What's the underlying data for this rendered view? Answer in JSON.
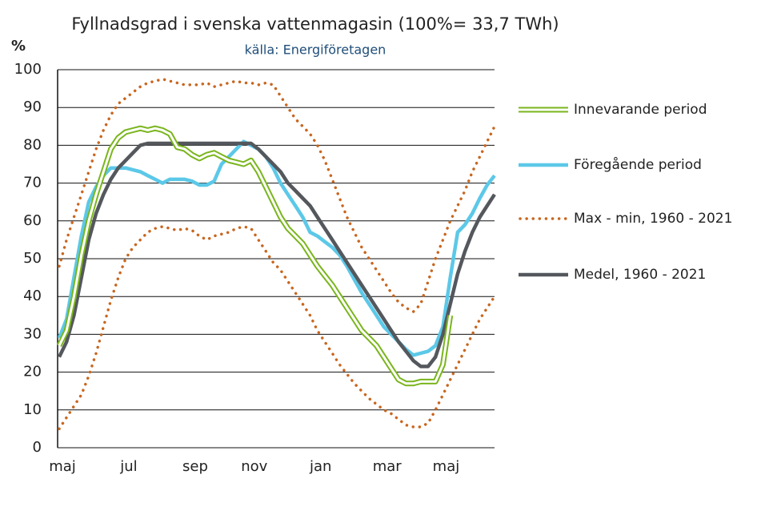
{
  "chart_data": {
    "type": "line",
    "title": "Fyllnadsgrad i svenska vattenmagasin (100%= 33,7 TWh)",
    "subtitle": "källa: Energiföretagen",
    "y_label": "%",
    "ylim": [
      0,
      100
    ],
    "yticks": [
      0,
      10,
      20,
      30,
      40,
      50,
      60,
      70,
      80,
      90,
      100
    ],
    "grid": true,
    "categories": [
      "maj",
      null,
      null,
      null,
      null,
      null,
      null,
      null,
      null,
      "jul",
      null,
      null,
      null,
      null,
      null,
      null,
      null,
      null,
      "sep",
      null,
      null,
      null,
      null,
      null,
      null,
      null,
      "nov",
      null,
      null,
      null,
      null,
      null,
      null,
      null,
      null,
      "jan",
      null,
      null,
      null,
      null,
      null,
      null,
      null,
      null,
      "mar",
      null,
      null,
      null,
      null,
      null,
      null,
      null,
      "maj",
      null,
      null,
      null,
      null,
      null,
      null,
      null
    ],
    "series": [
      {
        "name": "Innevarande period",
        "color": "#7ab51d",
        "style": "double",
        "values": [
          27,
          31,
          40,
          51,
          60,
          67,
          73,
          79,
          82,
          83.5,
          84,
          84.5,
          84,
          84.5,
          84,
          83,
          79.5,
          79,
          77.5,
          76.5,
          77.5,
          78,
          77,
          76,
          75.5,
          75,
          76,
          73,
          69,
          65,
          61,
          58,
          56,
          54,
          51,
          48,
          45.5,
          43,
          40,
          37,
          34,
          31,
          29,
          27,
          24,
          21,
          18,
          17,
          17,
          17.5,
          17.5,
          17.5,
          22,
          35,
          null,
          null,
          null,
          null,
          null,
          null
        ]
      },
      {
        "name": "Föregående period",
        "color": "#5cc8e8",
        "style": "solid",
        "values": [
          29,
          34,
          45,
          56,
          65,
          69,
          72,
          74,
          74,
          74,
          73.5,
          73,
          72,
          71,
          70,
          71,
          71,
          71,
          70.5,
          69.5,
          69.5,
          70.5,
          75,
          77,
          79,
          81,
          80,
          79,
          77,
          74,
          70,
          67,
          64,
          61,
          57,
          56,
          54.5,
          53,
          51,
          48,
          44.5,
          41,
          38,
          35,
          32,
          30,
          28,
          26,
          24.5,
          25,
          25.5,
          27,
          32,
          45,
          57,
          59,
          62,
          66,
          69.5,
          72
        ]
      },
      {
        "name": "Max - min, 1960 - 2021",
        "color": "#c8661f",
        "style": "dotted",
        "values": [
          48,
          55,
          61,
          67,
          73,
          79,
          84,
          88,
          91,
          92.5,
          94,
          95.5,
          96.5,
          97,
          97.5,
          97,
          96.5,
          96,
          96,
          96,
          96.5,
          95.5,
          96,
          96.5,
          97,
          96.5,
          96.5,
          96,
          96.5,
          96,
          93,
          90,
          87,
          85,
          83,
          80,
          76,
          71,
          66,
          61,
          57,
          53,
          50,
          47,
          44,
          41,
          38.5,
          37,
          36,
          38,
          44,
          50,
          55,
          60,
          64,
          68,
          73,
          77,
          81,
          85
        ],
        "low": [
          5,
          8,
          11,
          14,
          19,
          25,
          32,
          39,
          45,
          50,
          53,
          55,
          57,
          58,
          58.5,
          58,
          57.5,
          58,
          57.5,
          56,
          55,
          56,
          56.5,
          57,
          58,
          58.5,
          58,
          55,
          52,
          49,
          47,
          44,
          41,
          38,
          35,
          31,
          28,
          25,
          22,
          19.5,
          17,
          15,
          13,
          11.5,
          10,
          9,
          7.5,
          6,
          5.5,
          5.5,
          6.5,
          10,
          14,
          18,
          22,
          26,
          30,
          34,
          37,
          40
        ]
      },
      {
        "name": "Medel, 1960 - 2021",
        "color": "#54585d",
        "style": "solid",
        "values": [
          24,
          28,
          35,
          45,
          55,
          62,
          67,
          71,
          74,
          76,
          78,
          80,
          80.5,
          80.5,
          80.5,
          80.5,
          80.5,
          80.5,
          80.5,
          80.5,
          80.5,
          80.5,
          80.5,
          80.5,
          80.5,
          80.5,
          80.5,
          79,
          77,
          75,
          73,
          70,
          68,
          66,
          64,
          61,
          58,
          55,
          52,
          49,
          46,
          43,
          40,
          37,
          34,
          31,
          28,
          25.5,
          23,
          21.5,
          21.5,
          24,
          30,
          38,
          46,
          52,
          57,
          61,
          64,
          67
        ]
      }
    ]
  }
}
